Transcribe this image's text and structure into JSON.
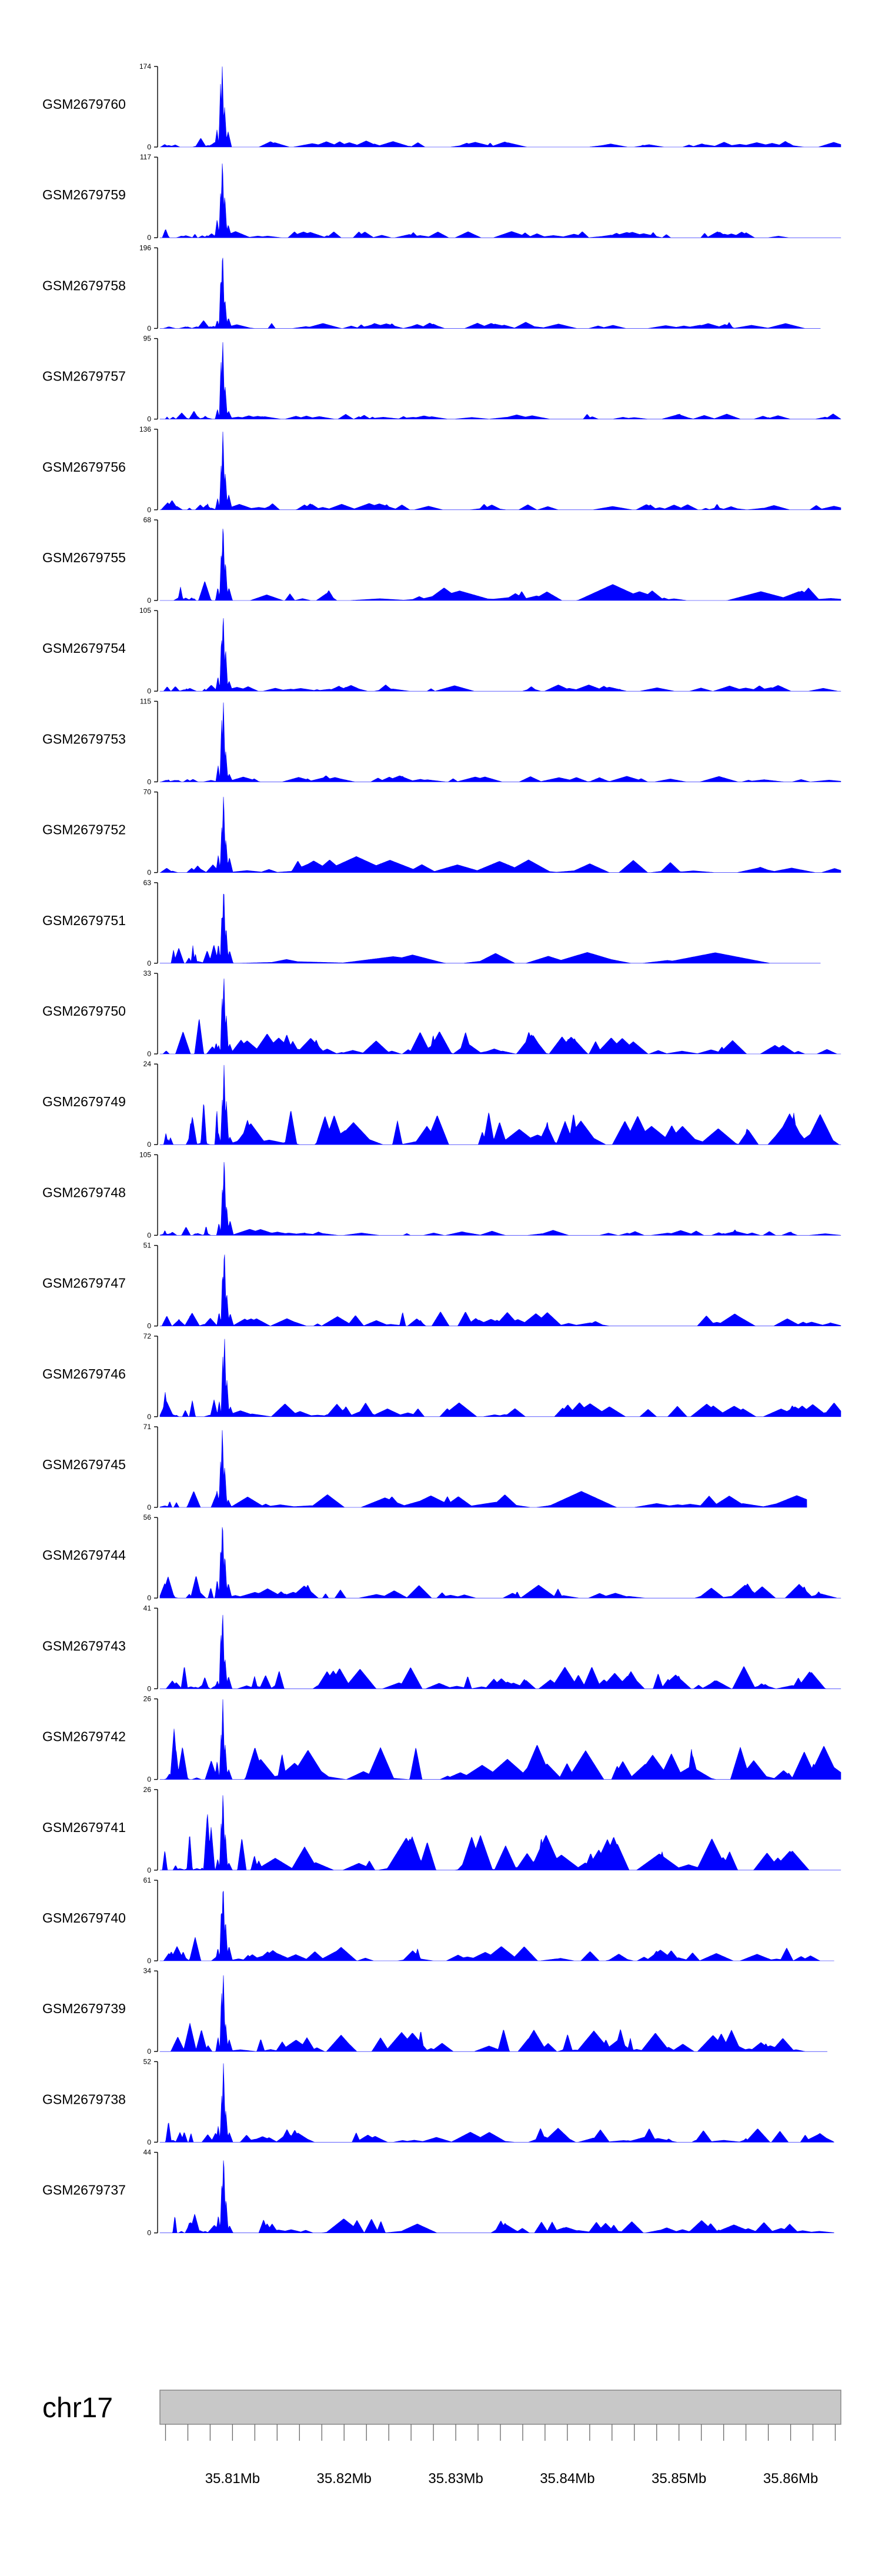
{
  "colors": {
    "coverage": "#0000ff",
    "ideogram": "#c8c8c8",
    "axis": "#000000"
  },
  "chart_data": {
    "type": "area",
    "title": "",
    "chromosome": "chr17",
    "x_unit": "Mb",
    "xlim": [
      35.8035,
      35.8645
    ],
    "x_tick_labels": [
      {
        "value": 35.81,
        "label": "35.81Mb"
      },
      {
        "value": 35.82,
        "label": "35.82Mb"
      },
      {
        "value": 35.83,
        "label": "35.83Mb"
      },
      {
        "value": 35.84,
        "label": "35.84Mb"
      },
      {
        "value": 35.85,
        "label": "35.85Mb"
      },
      {
        "value": 35.86,
        "label": "35.86Mb"
      }
    ],
    "minor_tick_step": 0.002,
    "tracks": [
      {
        "name": "GSM2679760",
        "ymax": 174,
        "ymin": 0,
        "peak": 174,
        "variant": "smallflat",
        "seed": 11,
        "end": 1.0
      },
      {
        "name": "GSM2679759",
        "ymax": 117,
        "ymin": 0,
        "peak": 117,
        "variant": "smallflat",
        "seed": 12,
        "end": 1.0
      },
      {
        "name": "GSM2679758",
        "ymax": 196,
        "ymin": 0,
        "peak": 196,
        "variant": "smallflat",
        "seed": 13,
        "end": 0.97
      },
      {
        "name": "GSM2679757",
        "ymax": 95,
        "ymin": 0,
        "peak": 95,
        "variant": "smallflat",
        "seed": 14,
        "end": 1.0
      },
      {
        "name": "GSM2679756",
        "ymax": 136,
        "ymin": 0,
        "peak": 136,
        "variant": "smallflat",
        "seed": 15,
        "end": 1.0
      },
      {
        "name": "GSM2679755",
        "ymax": 68,
        "ymin": 0,
        "peak": 68,
        "variant": "lowmid",
        "seed": 16,
        "end": 1.0
      },
      {
        "name": "GSM2679754",
        "ymax": 105,
        "ymin": 0,
        "peak": 105,
        "variant": "smallflat",
        "seed": 17,
        "end": 1.0
      },
      {
        "name": "GSM2679753",
        "ymax": 115,
        "ymin": 0,
        "peak": 115,
        "variant": "smallflat",
        "seed": 18,
        "end": 1.0
      },
      {
        "name": "GSM2679752",
        "ymax": 70,
        "ymin": 0,
        "peak": 70,
        "variant": "lowmid",
        "seed": 19,
        "end": 1.0
      },
      {
        "name": "GSM2679751",
        "ymax": 63,
        "ymin": 0,
        "peak": 63,
        "variant": "sparse",
        "seed": 20,
        "end": 0.97
      },
      {
        "name": "GSM2679750",
        "ymax": 33,
        "ymin": 0,
        "peak": 33,
        "variant": "dense",
        "seed": 21,
        "end": 1.0
      },
      {
        "name": "GSM2679749",
        "ymax": 24,
        "ymin": 0,
        "peak": 24,
        "variant": "densehigh",
        "seed": 22,
        "end": 1.0
      },
      {
        "name": "GSM2679748",
        "ymax": 105,
        "ymin": 0,
        "peak": 105,
        "variant": "smallflat",
        "seed": 23,
        "end": 1.0
      },
      {
        "name": "GSM2679747",
        "ymax": 51,
        "ymin": 0,
        "peak": 51,
        "variant": "mid",
        "seed": 24,
        "end": 1.0
      },
      {
        "name": "GSM2679746",
        "ymax": 72,
        "ymin": 0,
        "peak": 72,
        "variant": "mid",
        "seed": 25,
        "end": 1.0
      },
      {
        "name": "GSM2679745",
        "ymax": 71,
        "ymin": 0,
        "peak": 71,
        "variant": "lowmid",
        "seed": 26,
        "end": 0.95
      },
      {
        "name": "GSM2679744",
        "ymax": 56,
        "ymin": 0,
        "peak": 56,
        "variant": "mid",
        "seed": 27,
        "end": 1.0
      },
      {
        "name": "GSM2679743",
        "ymax": 41,
        "ymin": 0,
        "peak": 41,
        "variant": "dense",
        "seed": 28,
        "end": 1.0
      },
      {
        "name": "GSM2679742",
        "ymax": 26,
        "ymin": 0,
        "peak": 26,
        "variant": "densehigh",
        "seed": 29,
        "end": 1.0
      },
      {
        "name": "GSM2679741",
        "ymax": 26,
        "ymin": 0,
        "peak": 26,
        "variant": "densehigh",
        "seed": 30,
        "end": 1.0
      },
      {
        "name": "GSM2679740",
        "ymax": 61,
        "ymin": 0,
        "peak": 61,
        "variant": "mid",
        "seed": 31,
        "end": 0.99
      },
      {
        "name": "GSM2679739",
        "ymax": 34,
        "ymin": 0,
        "peak": 34,
        "variant": "dense",
        "seed": 32,
        "end": 0.98
      },
      {
        "name": "GSM2679738",
        "ymax": 52,
        "ymin": 0,
        "peak": 52,
        "variant": "mid",
        "seed": 33,
        "end": 0.99
      },
      {
        "name": "GSM2679737",
        "ymax": 44,
        "ymin": 0,
        "peak": 44,
        "variant": "mid",
        "seed": 34,
        "end": 0.99
      }
    ]
  }
}
